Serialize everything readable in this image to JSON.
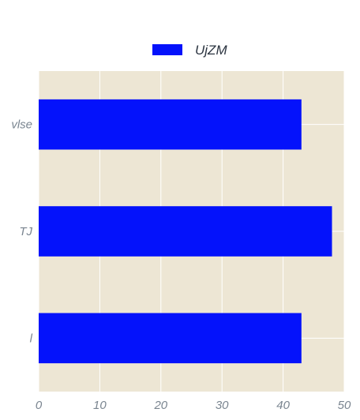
{
  "chart_data": {
    "type": "bar",
    "orientation": "horizontal",
    "categories": [
      "l",
      "TJ",
      "vlse"
    ],
    "series": [
      {
        "name": "UjZM",
        "values": [
          43,
          48,
          43
        ],
        "color": "#0412fb"
      }
    ],
    "xlim": [
      0,
      50
    ],
    "xticks": [
      0,
      10,
      20,
      30,
      40,
      50
    ],
    "grid": true,
    "legend": "top-center",
    "plot_background": "#ede6d4",
    "grid_color": "#ffffff"
  }
}
